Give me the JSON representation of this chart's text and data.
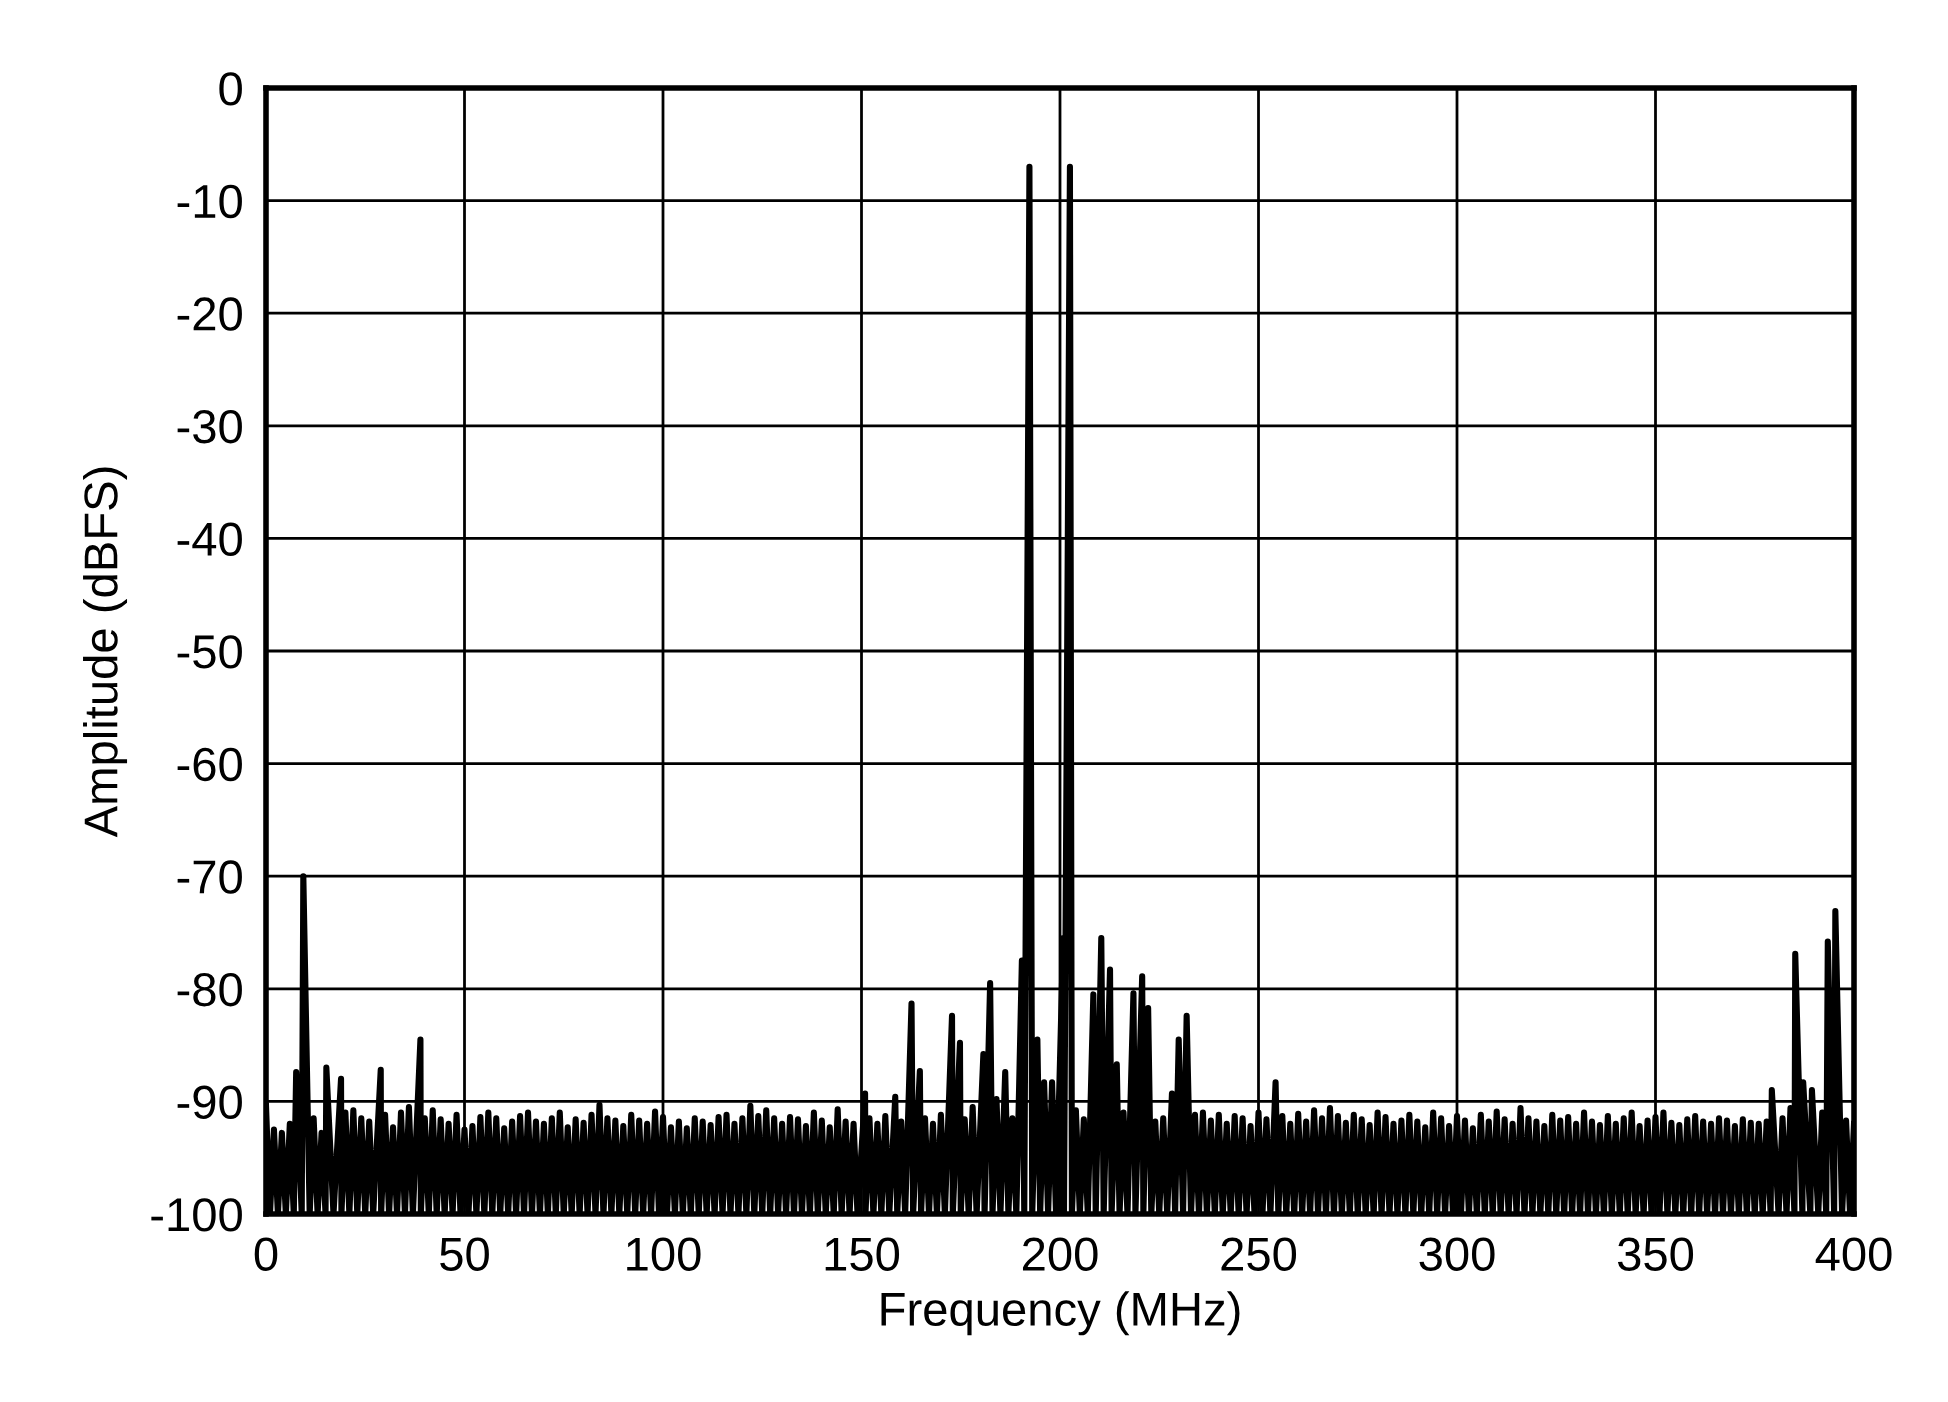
{
  "chart_data": {
    "type": "line",
    "xlabel": "Frequency (MHz)",
    "ylabel": "Amplitude (dBFS)",
    "xlim": [
      0,
      400
    ],
    "xticks": [
      0,
      50,
      100,
      150,
      200,
      250,
      300,
      350,
      400
    ],
    "ylim": [
      -100,
      0
    ],
    "yticks": [
      -100,
      -90,
      -80,
      -70,
      -60,
      -50,
      -40,
      -30,
      -20,
      -10,
      0
    ],
    "grid": true,
    "legend": false,
    "marker": "none",
    "line_style": "solid",
    "series": [
      {
        "color": "#000000",
        "x": [
          0,
          1,
          2,
          3,
          4,
          5,
          6,
          7,
          7.6,
          9,
          9.4,
          11,
          12,
          13,
          14,
          15,
          15.2,
          17,
          18.9,
          19,
          20,
          21,
          22,
          23,
          24,
          25,
          26,
          27,
          28.9,
          29,
          30,
          31,
          32,
          33,
          34,
          35,
          36,
          37,
          38.9,
          39,
          40,
          41,
          42,
          43,
          44,
          45,
          46,
          47,
          48,
          49,
          50,
          51,
          52,
          53,
          54,
          55,
          56,
          57,
          58,
          59,
          60,
          61,
          62,
          63,
          64,
          65,
          66,
          67,
          68,
          69,
          70,
          71,
          72,
          73,
          74,
          75,
          76,
          77,
          78,
          79,
          80,
          81,
          82,
          83,
          84,
          85,
          86,
          87,
          88,
          89,
          90,
          91,
          92,
          93,
          94,
          95,
          96,
          97,
          98,
          99,
          100,
          101,
          102,
          103,
          104,
          105,
          106,
          107,
          108,
          109,
          110,
          111,
          112,
          113,
          114,
          115,
          116,
          117,
          118,
          119,
          120,
          121,
          122,
          123,
          124,
          125,
          126,
          127,
          128,
          129,
          130,
          131,
          132,
          133,
          134,
          135,
          136,
          137,
          138,
          139,
          140,
          141,
          142,
          143,
          144,
          145,
          146,
          147,
          148,
          149,
          150.9,
          151,
          152,
          153,
          154,
          155,
          156,
          157,
          158.5,
          159,
          160,
          161,
          162.6,
          163,
          164.7,
          165,
          166,
          167,
          168,
          169,
          170,
          171,
          172.8,
          173,
          174.8,
          175,
          176,
          177,
          178,
          179,
          180.7,
          181,
          182.4,
          183,
          184,
          185,
          186.2,
          187,
          188,
          189,
          190.4,
          191,
          192.3,
          193,
          194.3,
          195,
          196,
          197,
          198,
          199,
          200.8,
          201,
          202.5,
          203,
          204,
          205,
          206,
          207,
          208.4,
          209,
          210.4,
          211,
          212.6,
          213,
          214.3,
          215,
          216,
          217,
          218.5,
          219,
          220.7,
          221,
          222.2,
          223,
          224,
          225,
          226,
          227,
          228.2,
          229,
          229.9,
          231,
          231.9,
          233,
          234,
          235,
          236,
          237,
          238,
          239,
          240,
          241,
          242,
          243,
          244,
          245,
          246,
          247,
          248,
          249,
          250,
          251,
          252,
          253,
          254.3,
          255,
          256,
          257,
          258,
          259,
          260,
          261,
          262,
          263,
          264,
          265,
          266,
          267,
          268,
          269,
          270,
          271,
          272,
          273,
          274,
          275,
          276,
          277,
          278,
          279,
          280,
          281,
          282,
          283,
          284,
          285,
          286,
          287,
          288,
          289,
          290,
          291,
          292,
          293,
          294,
          295,
          296,
          297,
          298,
          299,
          300,
          301,
          302,
          303,
          304,
          305,
          306,
          307,
          308,
          309,
          310,
          311,
          312,
          313,
          314,
          315,
          316,
          317,
          318,
          319,
          320,
          321,
          322,
          323,
          324,
          325,
          326,
          327,
          328,
          329,
          330,
          331,
          332,
          333,
          334,
          335,
          336,
          337,
          338,
          339,
          340,
          341,
          342,
          343,
          344,
          345,
          346,
          347,
          348,
          349,
          350,
          351,
          352,
          353,
          354,
          355,
          356,
          357,
          358,
          359,
          360,
          361,
          362,
          363,
          364,
          365,
          366,
          367,
          368,
          369,
          370,
          371,
          372,
          373,
          374,
          375,
          376,
          377,
          378,
          379,
          379.3,
          381,
          382,
          383,
          384,
          385,
          385.2,
          387,
          387.2,
          389,
          389.4,
          391,
          392,
          393,
          393.4,
          395,
          395.3,
          397,
          398,
          399,
          400
        ],
        "values": [
          -90.4,
          -100,
          -92.5,
          -100,
          -92.8,
          -100,
          -92.0,
          -100,
          -87.4,
          -100,
          -70,
          -100,
          -91.5,
          -100,
          -92.8,
          -100,
          -87,
          -100,
          -88,
          -100,
          -91.0,
          -100,
          -90.8,
          -100,
          -91.5,
          -100,
          -91.8,
          -100,
          -87.2,
          -100,
          -91.2,
          -100,
          -92.3,
          -100,
          -91.0,
          -100,
          -90.5,
          -100,
          -84.5,
          -100,
          -91.5,
          -100,
          -90.8,
          -100,
          -91.6,
          -100,
          -92.0,
          -100,
          -91.2,
          -100,
          -92.5,
          -100,
          -92.2,
          -100,
          -91.4,
          -100,
          -91.0,
          -100,
          -91.5,
          -100,
          -92.4,
          -100,
          -91.8,
          -100,
          -91.3,
          -100,
          -91.0,
          -100,
          -91.8,
          -100,
          -92.0,
          -100,
          -91.5,
          -100,
          -91.0,
          -100,
          -92.3,
          -100,
          -91.6,
          -100,
          -91.9,
          -100,
          -91.2,
          -100,
          -90.3,
          -100,
          -91.5,
          -100,
          -91.7,
          -100,
          -92.2,
          -100,
          -91.2,
          -100,
          -91.7,
          -100,
          -92.0,
          -100,
          -90.9,
          -100,
          -91.4,
          -100,
          -92.3,
          -100,
          -91.8,
          -100,
          -92.4,
          -100,
          -91.5,
          -100,
          -91.8,
          -100,
          -92.1,
          -100,
          -91.4,
          -100,
          -91.2,
          -100,
          -92.0,
          -100,
          -91.5,
          -100,
          -90.4,
          -100,
          -91.3,
          -100,
          -90.8,
          -100,
          -91.5,
          -100,
          -92.0,
          -100,
          -91.4,
          -100,
          -91.6,
          -100,
          -92.2,
          -100,
          -91.0,
          -100,
          -91.7,
          -100,
          -92.3,
          -100,
          -90.7,
          -100,
          -91.8,
          -100,
          -92.0,
          -100,
          -89.3,
          -100,
          -91.5,
          -100,
          -92.0,
          -100,
          -91.3,
          -100,
          -89.6,
          -100,
          -91.8,
          -100,
          -81.3,
          -100,
          -87.3,
          -100,
          -91.5,
          -100,
          -92.0,
          -100,
          -91.2,
          -100,
          -82.4,
          -100,
          -84.8,
          -100,
          -91.6,
          -100,
          -90.5,
          -100,
          -85.8,
          -100,
          -79.5,
          -100,
          -89.8,
          -100,
          -87.4,
          -100,
          -91.5,
          -100,
          -77.5,
          -100,
          -7,
          -100,
          -84.5,
          -100,
          -88.3,
          -100,
          -88.3,
          -100,
          -75.5,
          -100,
          -7,
          -100,
          -90.8,
          -100,
          -91.6,
          -100,
          -80.5,
          -100,
          -75.5,
          -100,
          -78.3,
          -100,
          -86.7,
          -100,
          -91.0,
          -100,
          -80.4,
          -100,
          -78.9,
          -100,
          -81.7,
          -100,
          -91.8,
          -100,
          -91.5,
          -100,
          -89.3,
          -100,
          -84.5,
          -100,
          -82.4,
          -100,
          -91.2,
          -100,
          -91.0,
          -100,
          -91.7,
          -100,
          -91.2,
          -100,
          -92.0,
          -100,
          -91.3,
          -100,
          -91.5,
          -100,
          -92.2,
          -100,
          -91.0,
          -100,
          -91.6,
          -100,
          -88.3,
          -100,
          -91.3,
          -100,
          -92.0,
          -100,
          -91.1,
          -100,
          -91.8,
          -100,
          -90.8,
          -100,
          -91.5,
          -100,
          -90.6,
          -100,
          -91.3,
          -100,
          -91.9,
          -100,
          -91.2,
          -100,
          -91.6,
          -100,
          -92.1,
          -100,
          -91.0,
          -100,
          -91.4,
          -100,
          -92.0,
          -100,
          -91.7,
          -100,
          -91.2,
          -100,
          -91.8,
          -100,
          -92.3,
          -100,
          -91.0,
          -100,
          -91.5,
          -100,
          -92.2,
          -100,
          -91.3,
          -100,
          -91.7,
          -100,
          -92.4,
          -100,
          -91.2,
          -100,
          -91.8,
          -100,
          -90.9,
          -100,
          -91.6,
          -100,
          -92.0,
          -100,
          -90.6,
          -100,
          -91.5,
          -100,
          -91.8,
          -100,
          -92.2,
          -100,
          -91.2,
          -100,
          -91.7,
          -100,
          -91.4,
          -100,
          -92.0,
          -100,
          -91.0,
          -100,
          -91.8,
          -100,
          -92.1,
          -100,
          -91.3,
          -100,
          -92.0,
          -100,
          -91.5,
          -100,
          -91.0,
          -100,
          -92.2,
          -100,
          -91.7,
          -100,
          -91.4,
          -100,
          -91.0,
          -100,
          -91.9,
          -100,
          -92.1,
          -100,
          -91.6,
          -100,
          -91.3,
          -100,
          -91.8,
          -100,
          -92.0,
          -100,
          -91.5,
          -100,
          -91.7,
          -100,
          -92.2,
          -100,
          -91.6,
          -100,
          -91.9,
          -100,
          -92.0,
          -100,
          -91.8,
          -100,
          -89,
          -100,
          -91.5,
          -100,
          -90.6,
          -100,
          -76.9,
          -100,
          -88.3,
          -100,
          -89,
          -100,
          -91.0,
          -100,
          -75.8,
          -100,
          -73.1,
          -100,
          -91.7,
          -100,
          -92.0
        ]
      }
    ]
  }
}
